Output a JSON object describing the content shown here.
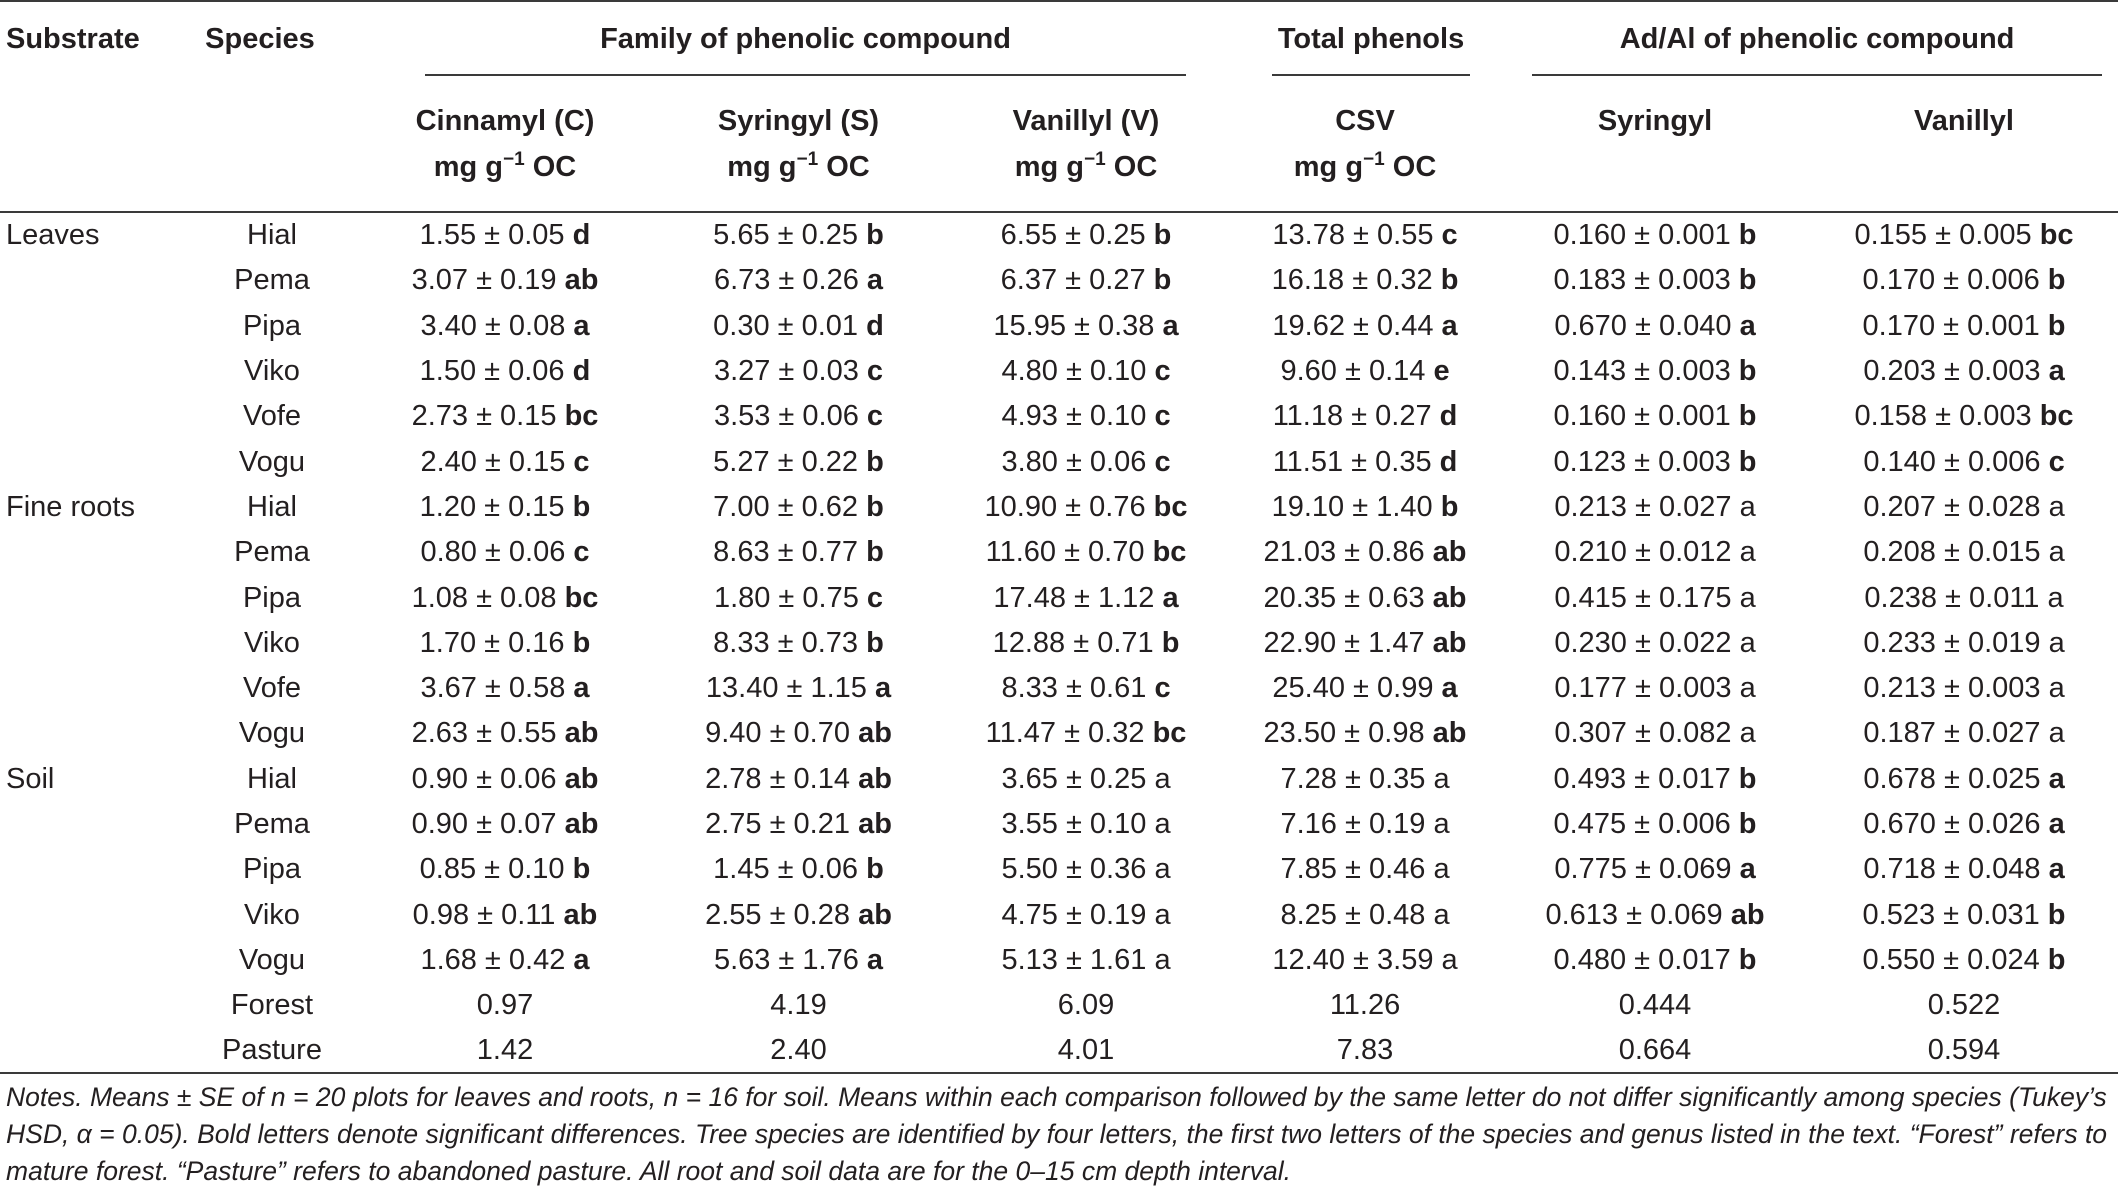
{
  "table": {
    "header": {
      "substrate": "Substrate",
      "species": "Species",
      "family_group": "Family of phenolic compound",
      "total_group": "Total phenols",
      "adal_group": "Ad/Al of phenolic compound",
      "cinnamyl": "Cinnamyl (C)",
      "syringyl": "Syringyl (S)",
      "vanillyl": "Vanillyl (V)",
      "csv": "CSV",
      "ad_syringyl": "Syringyl",
      "ad_vanillyl": "Vanillyl",
      "unit_prefix": "mg g",
      "unit_exp": "−1",
      "unit_suffix": " OC"
    },
    "rows": [
      {
        "substrate": "Leaves",
        "species": "Hial",
        "c": [
          "1.55 ± 0.05",
          "d",
          true
        ],
        "s": [
          "5.65 ± 0.25",
          "b",
          true
        ],
        "v": [
          "6.55 ± 0.25",
          "b",
          true
        ],
        "csv": [
          "13.78 ± 0.55",
          "c",
          true
        ],
        "ads": [
          "0.160 ± 0.001",
          "b",
          true
        ],
        "adv": [
          "0.155 ± 0.005",
          "bc",
          true
        ]
      },
      {
        "substrate": "",
        "species": "Pema",
        "c": [
          "3.07 ± 0.19",
          "ab",
          true
        ],
        "s": [
          "6.73 ± 0.26",
          "a",
          true
        ],
        "v": [
          "6.37 ± 0.27",
          "b",
          true
        ],
        "csv": [
          "16.18 ± 0.32",
          "b",
          true
        ],
        "ads": [
          "0.183 ± 0.003",
          "b",
          true
        ],
        "adv": [
          "0.170 ± 0.006",
          "b",
          true
        ]
      },
      {
        "substrate": "",
        "species": "Pipa",
        "c": [
          "3.40 ± 0.08",
          "a",
          true
        ],
        "s": [
          "0.30 ± 0.01",
          "d",
          true
        ],
        "v": [
          "15.95 ± 0.38",
          "a",
          true
        ],
        "csv": [
          "19.62 ± 0.44",
          "a",
          true
        ],
        "ads": [
          "0.670 ± 0.040",
          "a",
          true
        ],
        "adv": [
          "0.170 ± 0.001",
          "b",
          true
        ]
      },
      {
        "substrate": "",
        "species": "Viko",
        "c": [
          "1.50 ± 0.06",
          "d",
          true
        ],
        "s": [
          "3.27 ± 0.03",
          "c",
          true
        ],
        "v": [
          "4.80 ± 0.10",
          "c",
          true
        ],
        "csv": [
          "9.60 ± 0.14",
          "e",
          true
        ],
        "ads": [
          "0.143 ± 0.003",
          "b",
          true
        ],
        "adv": [
          "0.203 ± 0.003",
          "a",
          true
        ]
      },
      {
        "substrate": "",
        "species": "Vofe",
        "c": [
          "2.73 ± 0.15",
          "bc",
          true
        ],
        "s": [
          "3.53 ± 0.06",
          "c",
          true
        ],
        "v": [
          "4.93 ± 0.10",
          "c",
          true
        ],
        "csv": [
          "11.18 ± 0.27",
          "d",
          true
        ],
        "ads": [
          "0.160 ± 0.001",
          "b",
          true
        ],
        "adv": [
          "0.158 ± 0.003",
          "bc",
          true
        ]
      },
      {
        "substrate": "",
        "species": "Vogu",
        "c": [
          "2.40 ± 0.15",
          "c",
          true
        ],
        "s": [
          "5.27 ± 0.22",
          "b",
          true
        ],
        "v": [
          "3.80 ± 0.06",
          "c",
          true
        ],
        "csv": [
          "11.51 ± 0.35",
          "d",
          true
        ],
        "ads": [
          "0.123 ± 0.003",
          "b",
          true
        ],
        "adv": [
          "0.140 ± 0.006",
          "c",
          true
        ]
      },
      {
        "substrate": "Fine roots",
        "species": "Hial",
        "c": [
          "1.20 ± 0.15",
          "b",
          true
        ],
        "s": [
          "7.00 ± 0.62",
          "b",
          true
        ],
        "v": [
          "10.90 ± 0.76",
          "bc",
          true
        ],
        "csv": [
          "19.10 ± 1.40",
          "b",
          true
        ],
        "ads": [
          "0.213 ± 0.027",
          "a",
          false
        ],
        "adv": [
          "0.207 ± 0.028",
          "a",
          false
        ]
      },
      {
        "substrate": "",
        "species": "Pema",
        "c": [
          "0.80 ± 0.06",
          "c",
          true
        ],
        "s": [
          "8.63 ± 0.77",
          "b",
          true
        ],
        "v": [
          "11.60 ± 0.70",
          "bc",
          true
        ],
        "csv": [
          "21.03 ± 0.86",
          "ab",
          true
        ],
        "ads": [
          "0.210 ± 0.012",
          "a",
          false
        ],
        "adv": [
          "0.208 ± 0.015",
          "a",
          false
        ]
      },
      {
        "substrate": "",
        "species": "Pipa",
        "c": [
          "1.08 ± 0.08",
          "bc",
          true
        ],
        "s": [
          "1.80 ± 0.75",
          "c",
          true
        ],
        "v": [
          "17.48 ± 1.12",
          "a",
          true
        ],
        "csv": [
          "20.35 ± 0.63",
          "ab",
          true
        ],
        "ads": [
          "0.415 ± 0.175",
          "a",
          false
        ],
        "adv": [
          "0.238 ± 0.011",
          "a",
          false
        ]
      },
      {
        "substrate": "",
        "species": "Viko",
        "c": [
          "1.70 ± 0.16",
          "b",
          true
        ],
        "s": [
          "8.33 ± 0.73",
          "b",
          true
        ],
        "v": [
          "12.88 ± 0.71",
          "b",
          true
        ],
        "csv": [
          "22.90 ± 1.47",
          "ab",
          true
        ],
        "ads": [
          "0.230 ± 0.022",
          "a",
          false
        ],
        "adv": [
          "0.233 ± 0.019",
          "a",
          false
        ]
      },
      {
        "substrate": "",
        "species": "Vofe",
        "c": [
          "3.67 ± 0.58",
          "a",
          true
        ],
        "s": [
          "13.40 ± 1.15",
          "a",
          true
        ],
        "v": [
          "8.33 ± 0.61",
          "c",
          true
        ],
        "csv": [
          "25.40 ± 0.99",
          "a",
          true
        ],
        "ads": [
          "0.177 ± 0.003",
          "a",
          false
        ],
        "adv": [
          "0.213 ± 0.003",
          "a",
          false
        ]
      },
      {
        "substrate": "",
        "species": "Vogu",
        "c": [
          "2.63 ± 0.55",
          "ab",
          true
        ],
        "s": [
          "9.40 ± 0.70",
          "ab",
          true
        ],
        "v": [
          "11.47 ± 0.32",
          "bc",
          true
        ],
        "csv": [
          "23.50 ± 0.98",
          "ab",
          true
        ],
        "ads": [
          "0.307 ± 0.082",
          "a",
          false
        ],
        "adv": [
          "0.187 ± 0.027",
          "a",
          false
        ]
      },
      {
        "substrate": "Soil",
        "species": "Hial",
        "c": [
          "0.90 ± 0.06",
          "ab",
          true
        ],
        "s": [
          "2.78 ± 0.14",
          "ab",
          true
        ],
        "v": [
          "3.65 ± 0.25",
          "a",
          false
        ],
        "csv": [
          "7.28 ± 0.35",
          "a",
          false
        ],
        "ads": [
          "0.493 ± 0.017",
          "b",
          true
        ],
        "adv": [
          "0.678 ± 0.025",
          "a",
          true
        ]
      },
      {
        "substrate": "",
        "species": "Pema",
        "c": [
          "0.90 ± 0.07",
          "ab",
          true
        ],
        "s": [
          "2.75 ± 0.21",
          "ab",
          true
        ],
        "v": [
          "3.55 ± 0.10",
          "a",
          false
        ],
        "csv": [
          "7.16 ± 0.19",
          "a",
          false
        ],
        "ads": [
          "0.475 ± 0.006",
          "b",
          true
        ],
        "adv": [
          "0.670 ± 0.026",
          "a",
          true
        ]
      },
      {
        "substrate": "",
        "species": "Pipa",
        "c": [
          "0.85 ± 0.10",
          "b",
          true
        ],
        "s": [
          "1.45 ± 0.06",
          "b",
          true
        ],
        "v": [
          "5.50 ± 0.36",
          "a",
          false
        ],
        "csv": [
          "7.85 ± 0.46",
          "a",
          false
        ],
        "ads": [
          "0.775 ± 0.069",
          "a",
          true
        ],
        "adv": [
          "0.718 ± 0.048",
          "a",
          true
        ]
      },
      {
        "substrate": "",
        "species": "Viko",
        "c": [
          "0.98 ± 0.11",
          "ab",
          true
        ],
        "s": [
          "2.55 ± 0.28",
          "ab",
          true
        ],
        "v": [
          "4.75 ± 0.19",
          "a",
          false
        ],
        "csv": [
          "8.25 ± 0.48",
          "a",
          false
        ],
        "ads": [
          "0.613 ± 0.069",
          "ab",
          true
        ],
        "adv": [
          "0.523 ± 0.031",
          "b",
          true
        ]
      },
      {
        "substrate": "",
        "species": "Vogu",
        "c": [
          "1.68 ± 0.42",
          "a",
          true
        ],
        "s": [
          "5.63 ± 1.76",
          "a",
          true
        ],
        "v": [
          "5.13 ± 1.61",
          "a",
          false
        ],
        "csv": [
          "12.40 ± 3.59",
          "a",
          false
        ],
        "ads": [
          "0.480 ± 0.017",
          "b",
          true
        ],
        "adv": [
          "0.550 ± 0.024",
          "b",
          true
        ]
      },
      {
        "substrate": "",
        "species": "Forest",
        "c": [
          "0.97",
          "",
          false
        ],
        "s": [
          "4.19",
          "",
          false
        ],
        "v": [
          "6.09",
          "",
          false
        ],
        "csv": [
          "11.26",
          "",
          false
        ],
        "ads": [
          "0.444",
          "",
          false
        ],
        "adv": [
          "0.522",
          "",
          false
        ]
      },
      {
        "substrate": "",
        "species": "Pasture",
        "c": [
          "1.42",
          "",
          false
        ],
        "s": [
          "2.40",
          "",
          false
        ],
        "v": [
          "4.01",
          "",
          false
        ],
        "csv": [
          "7.83",
          "",
          false
        ],
        "ads": [
          "0.664",
          "",
          false
        ],
        "adv": [
          "0.594",
          "",
          false
        ]
      }
    ]
  },
  "notes": "Notes. Means ± SE of n = 20 plots for leaves and roots, n = 16 for soil. Means within each comparison followed by the same letter do not differ significantly among species (Tukey’s HSD, α = 0.05). Bold letters denote significant differences. Tree species are identified by four letters, the first two letters of the species and genus listed in the text. “Forest” refers to mature forest. “Pasture” refers to abandoned pasture. All root and soil data are for the 0–15 cm depth interval."
}
